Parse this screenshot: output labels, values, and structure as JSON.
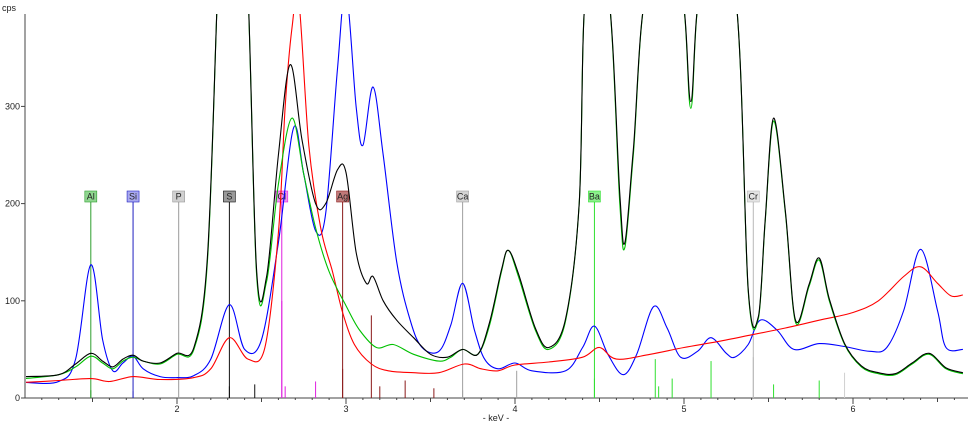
{
  "chart_data": {
    "type": "line",
    "ylabel": "cps",
    "xlabel": "- keV -",
    "xlim": [
      1.1,
      6.65
    ],
    "ylim": [
      0,
      390
    ],
    "x_ticks": [
      {
        "value": 2,
        "label": "2"
      },
      {
        "value": 3,
        "label": "3"
      },
      {
        "value": 4,
        "label": "4"
      },
      {
        "value": 5,
        "label": "5"
      },
      {
        "value": 6,
        "label": "6"
      }
    ],
    "y_ticks": [
      {
        "value": 0,
        "label": "0"
      },
      {
        "value": 100,
        "label": "100"
      },
      {
        "value": 200,
        "label": "200"
      },
      {
        "value": 300,
        "label": "300"
      }
    ],
    "element_markers": [
      {
        "label": "Al",
        "energy": 1.49,
        "color": "#2e9e2e",
        "box": "#8fd68f"
      },
      {
        "label": "Si",
        "energy": 1.74,
        "color": "#2020c0",
        "box": "#a8a8f0"
      },
      {
        "label": "P",
        "energy": 2.01,
        "color": "#9a9a9a",
        "box": "#d0d0d0"
      },
      {
        "label": "S",
        "energy": 2.31,
        "color": "#111111",
        "box": "#9a9a9a"
      },
      {
        "label": "Cl",
        "energy": 2.62,
        "color": "#e020e0",
        "box": "#f090f0"
      },
      {
        "label": "Ag",
        "energy": 2.98,
        "color": "#8b1a1a",
        "box": "#c07a7a"
      },
      {
        "label": "Ca",
        "energy": 3.69,
        "color": "#a0a0a0",
        "box": "#d4d4d4"
      },
      {
        "label": "Ba",
        "energy": 4.47,
        "color": "#30e030",
        "box": "#8cf08c"
      },
      {
        "label": "Cr",
        "energy": 5.41,
        "color": "#b8b8b8",
        "box": "#e4e4e4"
      }
    ],
    "series": [
      {
        "color": "#0000ff",
        "points": [
          [
            1.1,
            16
          ],
          [
            1.3,
            17
          ],
          [
            1.4,
            40
          ],
          [
            1.49,
            137
          ],
          [
            1.56,
            60
          ],
          [
            1.62,
            28
          ],
          [
            1.68,
            36
          ],
          [
            1.74,
            43
          ],
          [
            1.8,
            30
          ],
          [
            1.9,
            22
          ],
          [
            2.0,
            21
          ],
          [
            2.1,
            23
          ],
          [
            2.2,
            40
          ],
          [
            2.31,
            96
          ],
          [
            2.4,
            50
          ],
          [
            2.5,
            60
          ],
          [
            2.6,
            160
          ],
          [
            2.69,
            278
          ],
          [
            2.75,
            230
          ],
          [
            2.82,
            172
          ],
          [
            2.88,
            190
          ],
          [
            2.95,
            340
          ],
          [
            3.0,
            420
          ],
          [
            3.06,
            300
          ],
          [
            3.1,
            260
          ],
          [
            3.16,
            320
          ],
          [
            3.22,
            250
          ],
          [
            3.3,
            140
          ],
          [
            3.38,
            80
          ],
          [
            3.45,
            52
          ],
          [
            3.55,
            48
          ],
          [
            3.62,
            75
          ],
          [
            3.69,
            118
          ],
          [
            3.76,
            70
          ],
          [
            3.82,
            40
          ],
          [
            3.9,
            30
          ],
          [
            4.0,
            36
          ],
          [
            4.1,
            28
          ],
          [
            4.3,
            28
          ],
          [
            4.4,
            52
          ],
          [
            4.47,
            74
          ],
          [
            4.55,
            45
          ],
          [
            4.64,
            24
          ],
          [
            4.72,
            45
          ],
          [
            4.82,
            94
          ],
          [
            4.9,
            72
          ],
          [
            4.98,
            42
          ],
          [
            5.08,
            48
          ],
          [
            5.16,
            62
          ],
          [
            5.25,
            46
          ],
          [
            5.3,
            42
          ],
          [
            5.38,
            55
          ],
          [
            5.45,
            80
          ],
          [
            5.55,
            70
          ],
          [
            5.65,
            50
          ],
          [
            5.8,
            56
          ],
          [
            5.95,
            53
          ],
          [
            6.1,
            48
          ],
          [
            6.2,
            52
          ],
          [
            6.3,
            90
          ],
          [
            6.4,
            153
          ],
          [
            6.5,
            90
          ],
          [
            6.55,
            52
          ],
          [
            6.65,
            50
          ]
        ]
      },
      {
        "color": "#ff0000",
        "points": [
          [
            1.1,
            16
          ],
          [
            1.3,
            18
          ],
          [
            1.49,
            20
          ],
          [
            1.6,
            17
          ],
          [
            1.74,
            22
          ],
          [
            1.9,
            19
          ],
          [
            2.1,
            21
          ],
          [
            2.2,
            30
          ],
          [
            2.31,
            62
          ],
          [
            2.42,
            40
          ],
          [
            2.52,
            52
          ],
          [
            2.6,
            170
          ],
          [
            2.64,
            300
          ],
          [
            2.68,
            380
          ],
          [
            2.72,
            410
          ],
          [
            2.78,
            260
          ],
          [
            2.85,
            175
          ],
          [
            2.92,
            130
          ],
          [
            2.98,
            88
          ],
          [
            3.05,
            55
          ],
          [
            3.15,
            35
          ],
          [
            3.25,
            28
          ],
          [
            3.4,
            26
          ],
          [
            3.55,
            26
          ],
          [
            3.7,
            35
          ],
          [
            3.8,
            30
          ],
          [
            3.9,
            28
          ],
          [
            4.0,
            34
          ],
          [
            4.2,
            37
          ],
          [
            4.4,
            42
          ],
          [
            4.5,
            52
          ],
          [
            4.6,
            40
          ],
          [
            4.8,
            45
          ],
          [
            5.0,
            52
          ],
          [
            5.2,
            58
          ],
          [
            5.4,
            65
          ],
          [
            5.6,
            72
          ],
          [
            5.8,
            80
          ],
          [
            6.0,
            88
          ],
          [
            6.15,
            100
          ],
          [
            6.3,
            125
          ],
          [
            6.4,
            135
          ],
          [
            6.5,
            118
          ],
          [
            6.58,
            105
          ],
          [
            6.65,
            106
          ]
        ]
      },
      {
        "color": "#00c000",
        "points": [
          [
            1.1,
            20
          ],
          [
            1.3,
            24
          ],
          [
            1.4,
            32
          ],
          [
            1.49,
            43
          ],
          [
            1.56,
            36
          ],
          [
            1.62,
            30
          ],
          [
            1.68,
            38
          ],
          [
            1.74,
            42
          ],
          [
            1.8,
            38
          ],
          [
            1.9,
            35
          ],
          [
            2.0,
            45
          ],
          [
            2.1,
            50
          ],
          [
            2.18,
            140
          ],
          [
            2.24,
            420
          ],
          [
            2.28,
            600
          ],
          [
            2.4,
            500
          ],
          [
            2.47,
            130
          ],
          [
            2.53,
            120
          ],
          [
            2.6,
            220
          ],
          [
            2.68,
            288
          ],
          [
            2.75,
            230
          ],
          [
            2.82,
            175
          ],
          [
            2.9,
            130
          ],
          [
            3.0,
            95
          ],
          [
            3.08,
            70
          ],
          [
            3.18,
            52
          ],
          [
            3.28,
            55
          ],
          [
            3.4,
            45
          ],
          [
            3.55,
            38
          ],
          [
            3.62,
            42
          ],
          [
            3.69,
            50
          ],
          [
            3.78,
            45
          ],
          [
            3.85,
            75
          ],
          [
            3.92,
            130
          ],
          [
            3.96,
            152
          ],
          [
            4.02,
            125
          ],
          [
            4.12,
            70
          ],
          [
            4.2,
            50
          ],
          [
            4.3,
            80
          ],
          [
            4.38,
            200
          ],
          [
            4.42,
            420
          ],
          [
            4.55,
            420
          ],
          [
            4.62,
            200
          ],
          [
            4.65,
            155
          ],
          [
            4.7,
            250
          ],
          [
            4.78,
            420
          ],
          [
            4.98,
            420
          ],
          [
            5.04,
            298
          ],
          [
            5.1,
            420
          ],
          [
            5.3,
            420
          ],
          [
            5.38,
            110
          ],
          [
            5.44,
            82
          ],
          [
            5.48,
            180
          ],
          [
            5.53,
            285
          ],
          [
            5.6,
            190
          ],
          [
            5.66,
            78
          ],
          [
            5.74,
            115
          ],
          [
            5.8,
            142
          ],
          [
            5.86,
            100
          ],
          [
            5.95,
            55
          ],
          [
            6.05,
            32
          ],
          [
            6.15,
            25
          ],
          [
            6.25,
            24
          ],
          [
            6.35,
            35
          ],
          [
            6.45,
            45
          ],
          [
            6.55,
            30
          ],
          [
            6.65,
            25
          ]
        ]
      },
      {
        "color": "#000000",
        "points": [
          [
            1.1,
            22
          ],
          [
            1.3,
            24
          ],
          [
            1.4,
            35
          ],
          [
            1.49,
            46
          ],
          [
            1.56,
            38
          ],
          [
            1.62,
            32
          ],
          [
            1.68,
            40
          ],
          [
            1.74,
            44
          ],
          [
            1.8,
            38
          ],
          [
            1.9,
            36
          ],
          [
            2.0,
            46
          ],
          [
            2.1,
            52
          ],
          [
            2.18,
            145
          ],
          [
            2.24,
            420
          ],
          [
            2.28,
            600
          ],
          [
            2.4,
            500
          ],
          [
            2.47,
            135
          ],
          [
            2.53,
            125
          ],
          [
            2.6,
            250
          ],
          [
            2.67,
            343
          ],
          [
            2.74,
            265
          ],
          [
            2.82,
            200
          ],
          [
            2.88,
            200
          ],
          [
            2.95,
            235
          ],
          [
            3.0,
            232
          ],
          [
            3.06,
            150
          ],
          [
            3.12,
            118
          ],
          [
            3.16,
            125
          ],
          [
            3.22,
            100
          ],
          [
            3.3,
            80
          ],
          [
            3.4,
            62
          ],
          [
            3.5,
            45
          ],
          [
            3.6,
            42
          ],
          [
            3.69,
            50
          ],
          [
            3.78,
            45
          ],
          [
            3.85,
            78
          ],
          [
            3.92,
            132
          ],
          [
            3.96,
            152
          ],
          [
            4.02,
            128
          ],
          [
            4.12,
            72
          ],
          [
            4.2,
            52
          ],
          [
            4.3,
            82
          ],
          [
            4.38,
            200
          ],
          [
            4.42,
            420
          ],
          [
            4.55,
            420
          ],
          [
            4.62,
            210
          ],
          [
            4.65,
            160
          ],
          [
            4.7,
            255
          ],
          [
            4.78,
            420
          ],
          [
            4.98,
            420
          ],
          [
            5.04,
            305
          ],
          [
            5.1,
            420
          ],
          [
            5.3,
            420
          ],
          [
            5.38,
            112
          ],
          [
            5.44,
            84
          ],
          [
            5.48,
            182
          ],
          [
            5.53,
            288
          ],
          [
            5.6,
            192
          ],
          [
            5.66,
            80
          ],
          [
            5.74,
            117
          ],
          [
            5.8,
            144
          ],
          [
            5.86,
            102
          ],
          [
            5.95,
            56
          ],
          [
            6.05,
            33
          ],
          [
            6.15,
            26
          ],
          [
            6.25,
            25
          ],
          [
            6.35,
            36
          ],
          [
            6.45,
            46
          ],
          [
            6.55,
            31
          ],
          [
            6.65,
            26
          ]
        ]
      }
    ],
    "sticks": [
      {
        "energy": 1.49,
        "height": 8,
        "color": "#2e9e2e"
      },
      {
        "energy": 1.74,
        "height": 7,
        "color": "#2020c0"
      },
      {
        "energy": 2.31,
        "height": 12,
        "color": "#111111"
      },
      {
        "energy": 2.46,
        "height": 14,
        "color": "#111111"
      },
      {
        "energy": 2.62,
        "height": 100,
        "color": "#e020e0"
      },
      {
        "energy": 2.64,
        "height": 12,
        "color": "#e020e0"
      },
      {
        "energy": 2.82,
        "height": 17,
        "color": "#e020e0"
      },
      {
        "energy": 2.98,
        "height": 30,
        "color": "#8b1a1a"
      },
      {
        "energy": 3.15,
        "height": 85,
        "color": "#8b1a1a"
      },
      {
        "energy": 3.2,
        "height": 12,
        "color": "#8b1a1a"
      },
      {
        "energy": 3.35,
        "height": 18,
        "color": "#8b1a1a"
      },
      {
        "energy": 3.52,
        "height": 10,
        "color": "#8b1a1a"
      },
      {
        "energy": 3.69,
        "height": 8,
        "color": "#a0a0a0"
      },
      {
        "energy": 4.01,
        "height": 28,
        "color": "#a0a0a0"
      },
      {
        "energy": 4.47,
        "height": 20,
        "color": "#30e030"
      },
      {
        "energy": 4.83,
        "height": 40,
        "color": "#30e030"
      },
      {
        "energy": 4.85,
        "height": 12,
        "color": "#30e030"
      },
      {
        "energy": 4.93,
        "height": 20,
        "color": "#30e030"
      },
      {
        "energy": 5.16,
        "height": 38,
        "color": "#30e030"
      },
      {
        "energy": 5.41,
        "height": 42,
        "color": "#b8b8b8"
      },
      {
        "energy": 5.53,
        "height": 14,
        "color": "#30e030"
      },
      {
        "energy": 5.8,
        "height": 18,
        "color": "#30e030"
      },
      {
        "energy": 5.95,
        "height": 26,
        "color": "#d0d0d0"
      }
    ]
  }
}
